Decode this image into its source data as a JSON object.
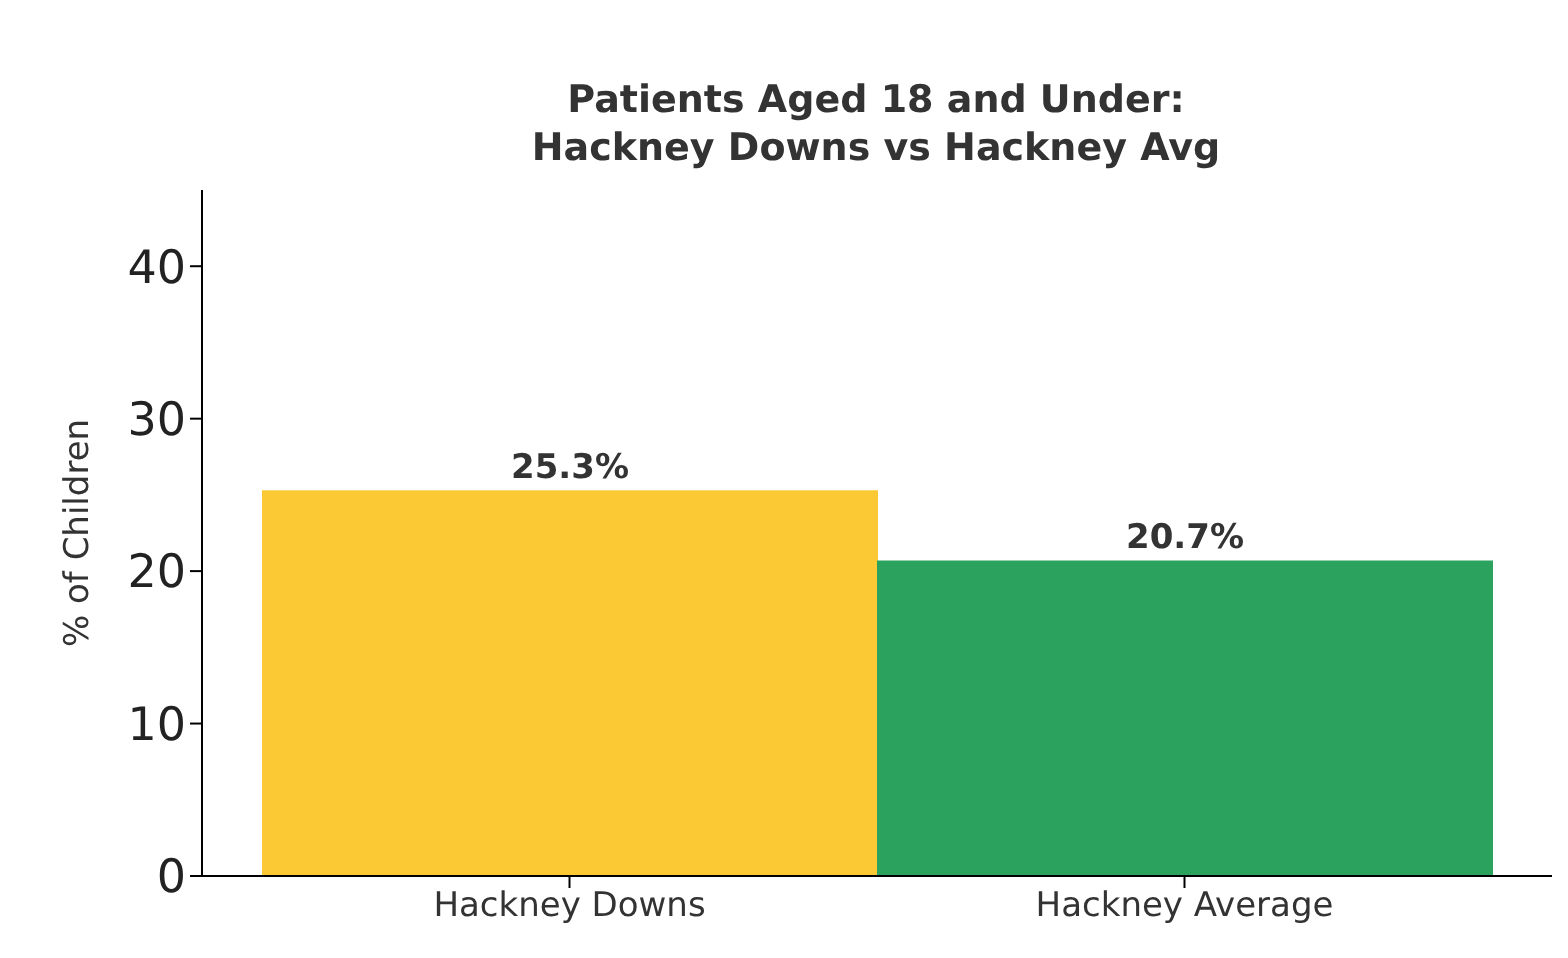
{
  "chart_data": {
    "type": "bar",
    "title": "Patients Aged 18 and Under:\nHackney Downs vs Hackney Avg",
    "ylabel": "% of Children",
    "categories": [
      "Hackney Downs",
      "Hackney Average"
    ],
    "values": [
      25.3,
      20.7
    ],
    "colors": [
      "#fbc934",
      "#2ca25f"
    ],
    "value_labels": [
      "25.3%",
      "20.7%"
    ],
    "ylim": [
      0,
      45
    ],
    "yticks": [
      0,
      10,
      20,
      30,
      40
    ]
  }
}
